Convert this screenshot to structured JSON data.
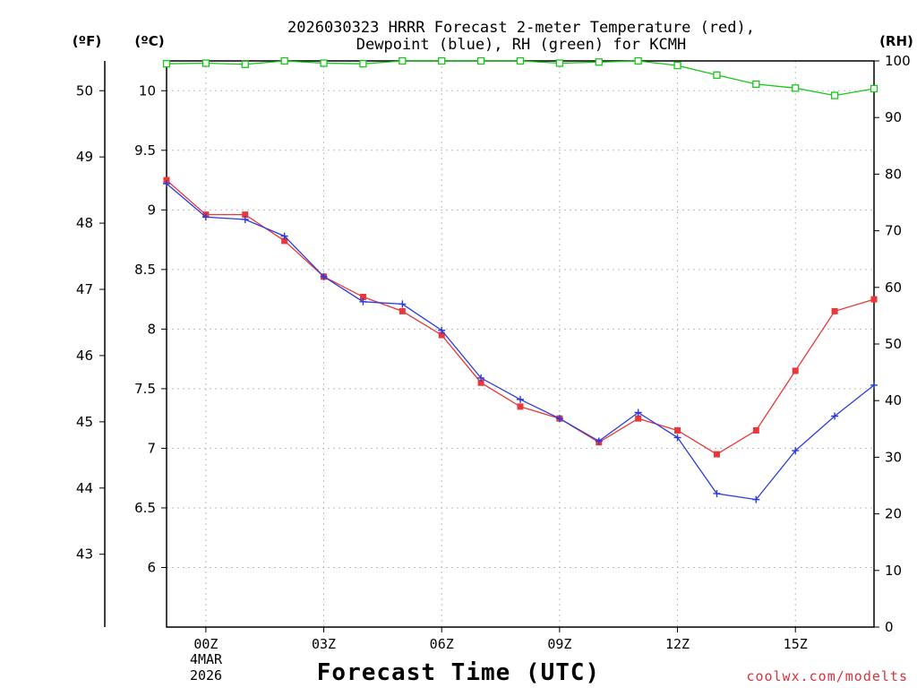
{
  "chart_data": {
    "type": "line",
    "title_line1": "2026030323 HRRR Forecast 2-meter Temperature (red),",
    "title_line2": "Dewpoint (blue), RH (green) for KCMH",
    "xlabel": "Forecast Time (UTC)",
    "left_unit_f": "(ºF)",
    "left_unit_c": "(ºC)",
    "right_unit": "(RH)",
    "watermark": "coolwx.com/modelts",
    "date_label": {
      "day": "4MAR",
      "year": "2026"
    },
    "x_ticks": [
      {
        "x": 0,
        "label": "00Z"
      },
      {
        "x": 3,
        "label": "03Z"
      },
      {
        "x": 6,
        "label": "06Z"
      },
      {
        "x": 9,
        "label": "09Z"
      },
      {
        "x": 12,
        "label": "12Z"
      },
      {
        "x": 15,
        "label": "15Z"
      }
    ],
    "xlim": [
      -1,
      17
    ],
    "celsius_ticks": [
      "6",
      "6.5",
      "7",
      "7.5",
      "8",
      "8.5",
      "9",
      "9.5",
      "10"
    ],
    "fahrenheit_ticks": [
      "43",
      "44",
      "45",
      "46",
      "47",
      "48",
      "49",
      "50"
    ],
    "rh_ticks": [
      "0",
      "10",
      "20",
      "30",
      "40",
      "50",
      "60",
      "70",
      "80",
      "90",
      "100"
    ],
    "ylim_c": [
      5.5,
      10.25
    ],
    "ylim_rh": [
      0,
      100
    ],
    "x": [
      -1,
      0,
      1,
      2,
      3,
      4,
      5,
      6,
      7,
      8,
      9,
      10,
      11,
      12,
      13,
      14,
      15,
      16,
      17
    ],
    "series": [
      {
        "name": "Temperature",
        "unit": "C",
        "color": "#e8383a",
        "values": [
          9.25,
          8.96,
          8.96,
          8.74,
          8.44,
          8.27,
          8.15,
          7.95,
          7.55,
          7.35,
          7.25,
          7.05,
          7.25,
          7.15,
          6.95,
          7.15,
          7.65,
          8.15,
          8.25
        ]
      },
      {
        "name": "Dewpoint",
        "unit": "C",
        "color": "#2b3ae0",
        "values": [
          9.22,
          8.94,
          8.92,
          8.78,
          8.44,
          8.23,
          8.21,
          7.99,
          7.59,
          7.41,
          7.25,
          7.06,
          7.3,
          7.09,
          6.62,
          6.57,
          6.98,
          7.27,
          7.53
        ]
      },
      {
        "name": "RH",
        "unit": "%",
        "color": "#18c818",
        "values": [
          99.5,
          99.6,
          99.4,
          100,
          99.6,
          99.5,
          100,
          100,
          100,
          100,
          99.6,
          99.8,
          100,
          99.2,
          97.5,
          95.9,
          95.2,
          93.9,
          95.1
        ]
      }
    ]
  }
}
